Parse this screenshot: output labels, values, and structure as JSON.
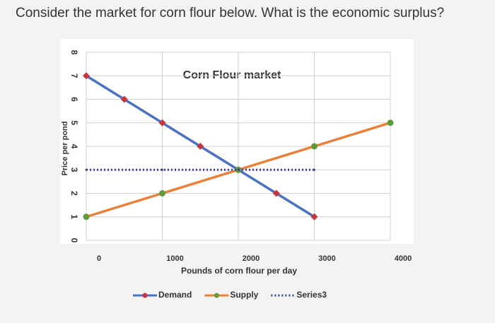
{
  "question": "Consider the market for corn flour below. What is the economic surplus?",
  "chart_data": {
    "type": "line",
    "title": "Corn Flour market",
    "x_label": "Pounds of corn flour per day",
    "y_label": "Price per pond",
    "xlim": [
      0,
      4000
    ],
    "xticks": [
      0,
      1000,
      2000,
      3000,
      4000
    ],
    "ylim": [
      0,
      8
    ],
    "yticks": [
      0,
      1,
      2,
      3,
      4,
      5,
      6,
      7,
      8
    ],
    "grid": true,
    "legend": "bottom",
    "series": [
      {
        "name": "Demand",
        "color": "#4a72c0",
        "marker_color": "#c8343c",
        "marker": "diamond",
        "dash": "solid",
        "x": [
          0,
          500,
          1000,
          1500,
          2000,
          2500,
          3000
        ],
        "values": [
          7,
          6,
          5,
          4,
          3,
          2,
          1
        ]
      },
      {
        "name": "Supply",
        "color": "#e9803a",
        "marker_color": "#5f9a3c",
        "marker": "circle",
        "dash": "solid",
        "x": [
          0,
          1000,
          2000,
          3000,
          4000
        ],
        "values": [
          1,
          2,
          3,
          4,
          5
        ]
      },
      {
        "name": "Series3",
        "color": "#3a3f9a",
        "marker_color": "#3a3f9a",
        "marker": "none",
        "dash": "dotted",
        "x": [
          0,
          1000,
          2000,
          3000
        ],
        "values": [
          3,
          3,
          3,
          3
        ]
      }
    ]
  }
}
